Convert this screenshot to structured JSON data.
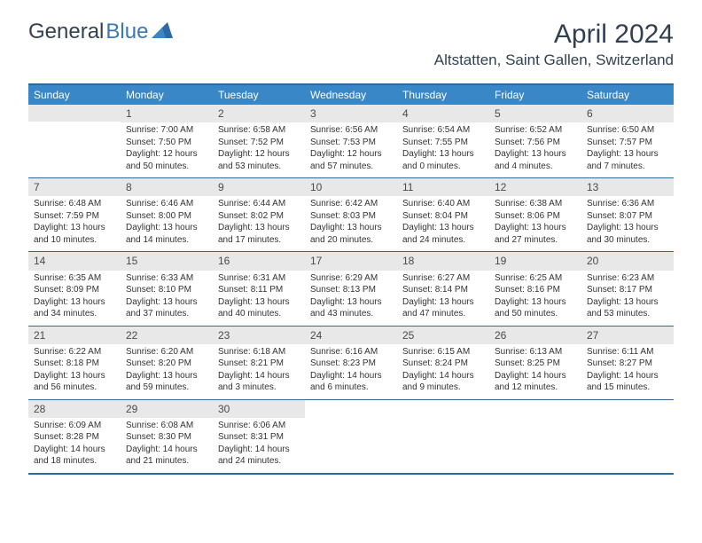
{
  "logo": {
    "part1": "General",
    "part2": "Blue"
  },
  "title": "April 2024",
  "location": "Altstatten, Saint Gallen, Switzerland",
  "colors": {
    "header_bg": "#3a87c7",
    "border": "#2d6aa3",
    "daynum_bg": "#e8e8e8",
    "text": "#333333",
    "logo_dark": "#324050",
    "logo_blue": "#3a78b5"
  },
  "dayNames": [
    "Sunday",
    "Monday",
    "Tuesday",
    "Wednesday",
    "Thursday",
    "Friday",
    "Saturday"
  ],
  "weeks": [
    [
      {
        "num": "",
        "sunrise": "",
        "sunset": "",
        "daylight": ""
      },
      {
        "num": "1",
        "sunrise": "Sunrise: 7:00 AM",
        "sunset": "Sunset: 7:50 PM",
        "daylight": "Daylight: 12 hours and 50 minutes."
      },
      {
        "num": "2",
        "sunrise": "Sunrise: 6:58 AM",
        "sunset": "Sunset: 7:52 PM",
        "daylight": "Daylight: 12 hours and 53 minutes."
      },
      {
        "num": "3",
        "sunrise": "Sunrise: 6:56 AM",
        "sunset": "Sunset: 7:53 PM",
        "daylight": "Daylight: 12 hours and 57 minutes."
      },
      {
        "num": "4",
        "sunrise": "Sunrise: 6:54 AM",
        "sunset": "Sunset: 7:55 PM",
        "daylight": "Daylight: 13 hours and 0 minutes."
      },
      {
        "num": "5",
        "sunrise": "Sunrise: 6:52 AM",
        "sunset": "Sunset: 7:56 PM",
        "daylight": "Daylight: 13 hours and 4 minutes."
      },
      {
        "num": "6",
        "sunrise": "Sunrise: 6:50 AM",
        "sunset": "Sunset: 7:57 PM",
        "daylight": "Daylight: 13 hours and 7 minutes."
      }
    ],
    [
      {
        "num": "7",
        "sunrise": "Sunrise: 6:48 AM",
        "sunset": "Sunset: 7:59 PM",
        "daylight": "Daylight: 13 hours and 10 minutes."
      },
      {
        "num": "8",
        "sunrise": "Sunrise: 6:46 AM",
        "sunset": "Sunset: 8:00 PM",
        "daylight": "Daylight: 13 hours and 14 minutes."
      },
      {
        "num": "9",
        "sunrise": "Sunrise: 6:44 AM",
        "sunset": "Sunset: 8:02 PM",
        "daylight": "Daylight: 13 hours and 17 minutes."
      },
      {
        "num": "10",
        "sunrise": "Sunrise: 6:42 AM",
        "sunset": "Sunset: 8:03 PM",
        "daylight": "Daylight: 13 hours and 20 minutes."
      },
      {
        "num": "11",
        "sunrise": "Sunrise: 6:40 AM",
        "sunset": "Sunset: 8:04 PM",
        "daylight": "Daylight: 13 hours and 24 minutes."
      },
      {
        "num": "12",
        "sunrise": "Sunrise: 6:38 AM",
        "sunset": "Sunset: 8:06 PM",
        "daylight": "Daylight: 13 hours and 27 minutes."
      },
      {
        "num": "13",
        "sunrise": "Sunrise: 6:36 AM",
        "sunset": "Sunset: 8:07 PM",
        "daylight": "Daylight: 13 hours and 30 minutes."
      }
    ],
    [
      {
        "num": "14",
        "sunrise": "Sunrise: 6:35 AM",
        "sunset": "Sunset: 8:09 PM",
        "daylight": "Daylight: 13 hours and 34 minutes."
      },
      {
        "num": "15",
        "sunrise": "Sunrise: 6:33 AM",
        "sunset": "Sunset: 8:10 PM",
        "daylight": "Daylight: 13 hours and 37 minutes."
      },
      {
        "num": "16",
        "sunrise": "Sunrise: 6:31 AM",
        "sunset": "Sunset: 8:11 PM",
        "daylight": "Daylight: 13 hours and 40 minutes."
      },
      {
        "num": "17",
        "sunrise": "Sunrise: 6:29 AM",
        "sunset": "Sunset: 8:13 PM",
        "daylight": "Daylight: 13 hours and 43 minutes."
      },
      {
        "num": "18",
        "sunrise": "Sunrise: 6:27 AM",
        "sunset": "Sunset: 8:14 PM",
        "daylight": "Daylight: 13 hours and 47 minutes."
      },
      {
        "num": "19",
        "sunrise": "Sunrise: 6:25 AM",
        "sunset": "Sunset: 8:16 PM",
        "daylight": "Daylight: 13 hours and 50 minutes."
      },
      {
        "num": "20",
        "sunrise": "Sunrise: 6:23 AM",
        "sunset": "Sunset: 8:17 PM",
        "daylight": "Daylight: 13 hours and 53 minutes."
      }
    ],
    [
      {
        "num": "21",
        "sunrise": "Sunrise: 6:22 AM",
        "sunset": "Sunset: 8:18 PM",
        "daylight": "Daylight: 13 hours and 56 minutes."
      },
      {
        "num": "22",
        "sunrise": "Sunrise: 6:20 AM",
        "sunset": "Sunset: 8:20 PM",
        "daylight": "Daylight: 13 hours and 59 minutes."
      },
      {
        "num": "23",
        "sunrise": "Sunrise: 6:18 AM",
        "sunset": "Sunset: 8:21 PM",
        "daylight": "Daylight: 14 hours and 3 minutes."
      },
      {
        "num": "24",
        "sunrise": "Sunrise: 6:16 AM",
        "sunset": "Sunset: 8:23 PM",
        "daylight": "Daylight: 14 hours and 6 minutes."
      },
      {
        "num": "25",
        "sunrise": "Sunrise: 6:15 AM",
        "sunset": "Sunset: 8:24 PM",
        "daylight": "Daylight: 14 hours and 9 minutes."
      },
      {
        "num": "26",
        "sunrise": "Sunrise: 6:13 AM",
        "sunset": "Sunset: 8:25 PM",
        "daylight": "Daylight: 14 hours and 12 minutes."
      },
      {
        "num": "27",
        "sunrise": "Sunrise: 6:11 AM",
        "sunset": "Sunset: 8:27 PM",
        "daylight": "Daylight: 14 hours and 15 minutes."
      }
    ],
    [
      {
        "num": "28",
        "sunrise": "Sunrise: 6:09 AM",
        "sunset": "Sunset: 8:28 PM",
        "daylight": "Daylight: 14 hours and 18 minutes."
      },
      {
        "num": "29",
        "sunrise": "Sunrise: 6:08 AM",
        "sunset": "Sunset: 8:30 PM",
        "daylight": "Daylight: 14 hours and 21 minutes."
      },
      {
        "num": "30",
        "sunrise": "Sunrise: 6:06 AM",
        "sunset": "Sunset: 8:31 PM",
        "daylight": "Daylight: 14 hours and 24 minutes."
      },
      {
        "num": "",
        "sunrise": "",
        "sunset": "",
        "daylight": ""
      },
      {
        "num": "",
        "sunrise": "",
        "sunset": "",
        "daylight": ""
      },
      {
        "num": "",
        "sunrise": "",
        "sunset": "",
        "daylight": ""
      },
      {
        "num": "",
        "sunrise": "",
        "sunset": "",
        "daylight": ""
      }
    ]
  ]
}
